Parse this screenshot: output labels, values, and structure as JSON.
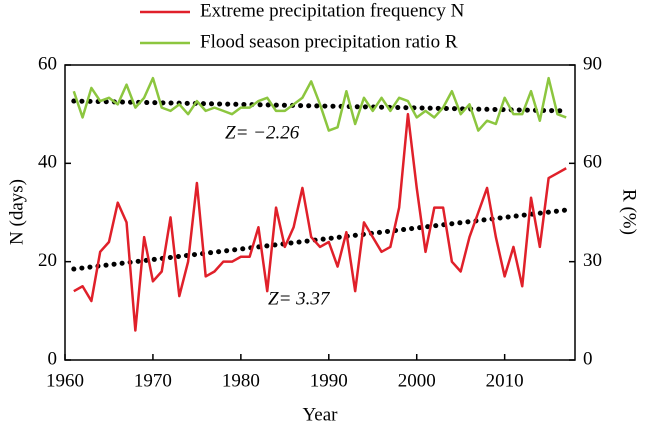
{
  "chart_data": {
    "type": "line",
    "x": [
      1961,
      1962,
      1963,
      1964,
      1965,
      1966,
      1967,
      1968,
      1969,
      1970,
      1971,
      1972,
      1973,
      1974,
      1975,
      1976,
      1977,
      1978,
      1979,
      1980,
      1981,
      1982,
      1983,
      1984,
      1985,
      1986,
      1987,
      1988,
      1989,
      1990,
      1991,
      1992,
      1993,
      1994,
      1995,
      1996,
      1997,
      1998,
      1999,
      2000,
      2001,
      2002,
      2003,
      2004,
      2005,
      2006,
      2007,
      2008,
      2009,
      2010,
      2011,
      2012,
      2013,
      2014,
      2015,
      2016,
      2017
    ],
    "series": [
      {
        "name": "Extreme precipitation frequency N",
        "color": "#e0202a",
        "axis": "y",
        "values": [
          14,
          15,
          12,
          22,
          24,
          32,
          28,
          6,
          25,
          16,
          18,
          29,
          13,
          20,
          36,
          17,
          18,
          20,
          20,
          21,
          21,
          27,
          14,
          31,
          23,
          27,
          35,
          25,
          23,
          24,
          19,
          26,
          14,
          28,
          25,
          22,
          23,
          31,
          50,
          35,
          22,
          31,
          31,
          20,
          18,
          25,
          30,
          35,
          25,
          17,
          23,
          15,
          33,
          23,
          37,
          38,
          39
        ]
      },
      {
        "name": "Flood season precipitation ratio R",
        "color": "#8cc63f",
        "axis": "y2",
        "values": [
          82,
          74,
          83,
          79,
          80,
          78,
          84,
          77,
          80,
          86,
          77,
          76,
          78,
          75,
          79,
          76,
          77,
          76,
          75,
          77,
          77,
          79,
          80,
          76,
          76,
          78,
          80,
          85,
          78,
          70,
          71,
          82,
          72,
          80,
          76,
          80,
          76,
          80,
          79,
          74,
          76,
          74,
          77,
          82,
          75,
          78,
          70,
          73,
          72,
          80,
          75,
          75,
          82,
          73,
          86,
          75,
          74
        ]
      }
    ],
    "trend_lines": [
      {
        "axis": "y",
        "x": [
          1961,
          2017
        ],
        "values": [
          18.5,
          30.5
        ],
        "color": "#000000"
      },
      {
        "axis": "y2",
        "x": [
          1961,
          2017
        ],
        "values": [
          79,
          76
        ],
        "color": "#000000"
      }
    ],
    "annotations": [
      "Z= −2.26",
      "Z= 3.37"
    ],
    "xlabel": "Year",
    "ylabel": "N (days)",
    "y2label": "R (%)",
    "xlim": [
      1960,
      2018
    ],
    "xticks": [
      1960,
      1970,
      1980,
      1990,
      2000,
      2010
    ],
    "ylim": [
      0,
      60
    ],
    "yticks": [
      0,
      20,
      40,
      60
    ],
    "y2lim": [
      0,
      90
    ],
    "y2ticks": [
      0,
      30,
      60,
      90
    ]
  }
}
